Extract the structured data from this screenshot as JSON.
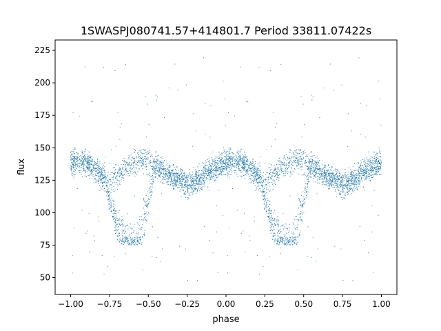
{
  "chart_data": {
    "type": "scatter",
    "title": "1SWASPJ080741.57+414801.7 Period 33811.07422s",
    "xlabel": "phase",
    "ylabel": "flux",
    "xlim": [
      -1.1,
      1.1
    ],
    "ylim": [
      37,
      233
    ],
    "x_ticks": [
      -1.0,
      -0.75,
      -0.5,
      -0.25,
      0.0,
      0.25,
      0.5,
      0.75,
      1.0
    ],
    "x_tick_labels": [
      "−1.00",
      "−0.75",
      "−0.50",
      "−0.25",
      "0.00",
      "0.25",
      "0.50",
      "0.75",
      "1.00"
    ],
    "y_ticks": [
      50,
      75,
      100,
      125,
      150,
      175,
      200,
      225
    ],
    "y_tick_labels": [
      "50",
      "75",
      "100",
      "125",
      "150",
      "175",
      "200",
      "225"
    ],
    "grid": false,
    "marker_color": "#1f77b4",
    "series": [
      {
        "x_range": [
          -1.0,
          1.0
        ],
        "shape_phase": [
          0.0,
          0.05,
          0.1,
          0.15,
          0.2,
          0.25,
          0.3,
          0.35,
          0.4,
          0.45,
          0.5,
          0.55,
          0.6,
          0.65,
          0.7,
          0.75,
          0.8,
          0.85,
          0.9,
          0.95,
          1.0
        ],
        "baseline_flux": [
          138,
          140,
          139,
          134,
          128,
          124,
          128,
          134,
          138,
          141,
          140,
          136,
          132,
          128,
          125,
          122,
          124,
          128,
          133,
          136,
          138
        ],
        "eclipse_phase_range": [
          0.22,
          0.55
        ],
        "eclipse_min_flux": 75,
        "scatter_flux": 8,
        "outlier_flux_range": [
          45,
          222
        ]
      }
    ]
  }
}
